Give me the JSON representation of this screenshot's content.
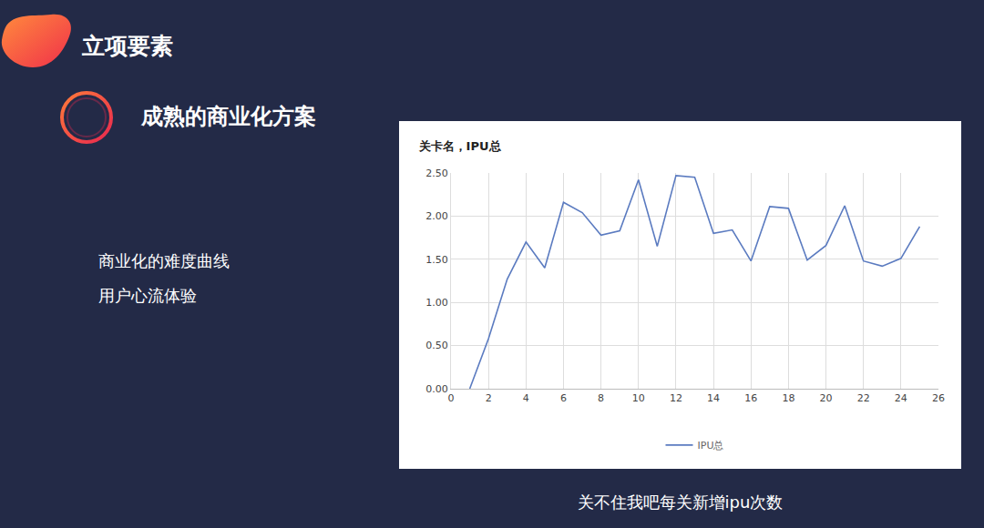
{
  "slide": {
    "heading": "立项要素",
    "subheading": "成熟的商业化方案",
    "bullets": [
      "商业化的难度曲线",
      "用户心流体验"
    ],
    "caption": "关不住我吧每关新增ipu次数"
  },
  "chart_data": {
    "type": "line",
    "title": "关卡名，IPU总",
    "x": [
      1,
      2,
      3,
      4,
      5,
      6,
      7,
      8,
      9,
      10,
      11,
      12,
      13,
      14,
      15,
      16,
      17,
      18,
      19,
      20,
      21,
      22,
      23,
      24,
      25
    ],
    "series": [
      {
        "name": "IPU总",
        "color": "#5b7bc0",
        "values": [
          0.0,
          0.58,
          1.27,
          1.7,
          1.4,
          2.16,
          2.04,
          1.78,
          1.83,
          2.42,
          1.65,
          2.47,
          2.45,
          1.8,
          1.84,
          1.48,
          2.11,
          2.09,
          1.49,
          1.66,
          2.12,
          1.48,
          1.42,
          1.51,
          1.88
        ]
      }
    ],
    "xlim": [
      0,
      26
    ],
    "xticks": [
      0,
      2,
      4,
      6,
      8,
      10,
      12,
      14,
      16,
      18,
      20,
      22,
      24,
      26
    ],
    "ylim": [
      0,
      2.5
    ],
    "yticks": [
      {
        "value": 0,
        "label": "0.00"
      },
      {
        "value": 0.5,
        "label": "0.50"
      },
      {
        "value": 1,
        "label": "1.00"
      },
      {
        "value": 1.5,
        "label": "1.50"
      },
      {
        "value": 2,
        "label": "2.00"
      },
      {
        "value": 2.5,
        "label": "2.50"
      }
    ],
    "grid": true,
    "legend": "bottom"
  }
}
